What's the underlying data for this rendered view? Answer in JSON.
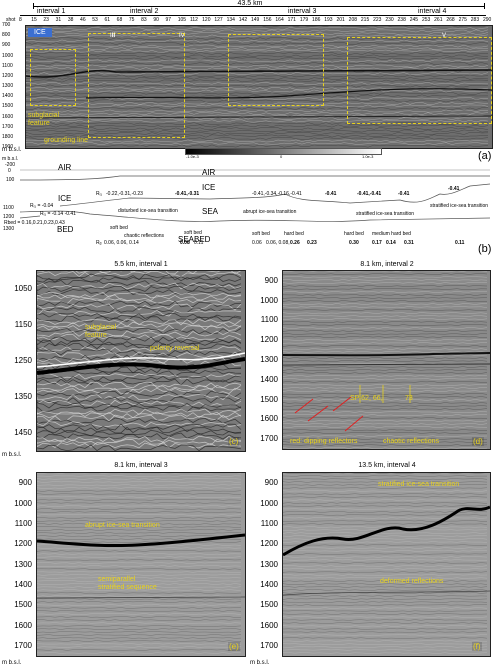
{
  "top": {
    "distance": "43.5 km",
    "intervals": [
      "interval 1",
      "interval 2",
      "interval 3",
      "interval 4"
    ],
    "shot_label": "shot",
    "shots": [
      "8",
      "15",
      "23",
      "31",
      "38",
      "46",
      "53",
      "61",
      "68",
      "75",
      "83",
      "90",
      "97",
      "105",
      "112",
      "120",
      "127",
      "134",
      "142",
      "149",
      "156",
      "164",
      "171",
      "179",
      "186",
      "193",
      "201",
      "208",
      "215",
      "223",
      "230",
      "238",
      "245",
      "253",
      "261",
      "268",
      "275",
      "283",
      "290"
    ],
    "y_ticks": [
      "700",
      "800",
      "900",
      "1000",
      "1100",
      "1200",
      "1300",
      "1400",
      "1500",
      "1600",
      "1700",
      "1800",
      "1900"
    ],
    "ice_badge": "ICE",
    "roman": [
      "II",
      "III",
      "IV",
      "V"
    ],
    "subglacial": "subglacial\nfeature",
    "grounding": "grounding line",
    "colorbar_left": "-1.0e-3",
    "colorbar_mid": "0",
    "colorbar_right": "1.0e-3",
    "unit": "m b.s.l.",
    "panel_a": "(a)"
  },
  "model": {
    "y_unit": "m b.s.l.",
    "y_ticks": [
      "-200",
      "0",
      "100",
      "1100",
      "1200",
      "1300"
    ],
    "air": "AIR",
    "ice": "ICE",
    "sea": "SEA",
    "bed": "BED",
    "seabed": "SEABED",
    "r_air": "Rᵢ₁ = -0.04",
    "r_ice": "Rᵢ₁ = -0.14 -0.41",
    "r_bed": "Rbed = 0.16,0.21,0.23,0.43",
    "ri_values": [
      "-0.22,-0.31,-0.23",
      "-0.41,-0.31",
      "-0.41,-0.34,-0.16,-0.41",
      "-0.41",
      "-0.41,-0.41",
      "-0.41",
      "-0.41"
    ],
    "ri_label": "Rᵢ₁",
    "transitions": [
      "disturbed ice-sea transition",
      "abrupt ice-sea transition",
      "stratified ice-sea transition",
      "stratified ice-sea transition"
    ],
    "beds": [
      "soft bed",
      "chaotic reflections",
      "soft bed",
      "soft bed",
      "hard bed",
      "hard bed",
      "medium hard bed"
    ],
    "rb_label": "Rᵦ",
    "rb_values": [
      "0.06, 0.06, 0.14",
      "0.08",
      "0.11",
      "0.06",
      "0.06, 0.08,",
      "0.26",
      "0.23",
      "0.30",
      "0.17",
      "0.14",
      "0.31",
      "0.11"
    ],
    "panel_b": "(b)"
  },
  "panels": [
    {
      "title": "5.5 km, interval 1",
      "letter": "(c)",
      "y_ticks": [
        "1050",
        "1150",
        "1250",
        "1350",
        "1450"
      ],
      "labels": [
        "subglacial\nfeature",
        "polarity reversal"
      ]
    },
    {
      "title": "8.1 km, interval 2",
      "letter": "(d)",
      "y_ticks": [
        "900",
        "1000",
        "1100",
        "1200",
        "1300",
        "1400",
        "1500",
        "1600",
        "1700"
      ],
      "labels": [
        "SP 62,   66,",
        "73",
        "red: dipping reflectors",
        "chaotic reflections"
      ]
    },
    {
      "title": "8.1 km, interval 3",
      "letter": "(e)",
      "y_ticks": [
        "900",
        "1000",
        "1100",
        "1200",
        "1300",
        "1400",
        "1500",
        "1600",
        "1700"
      ],
      "labels": [
        "abrupt ice-sea transition",
        "semiparallel\nstratified sequence"
      ]
    },
    {
      "title": "13.5 km, interval 4",
      "letter": "(f)",
      "y_ticks": [
        "900",
        "1000",
        "1100",
        "1200",
        "1300",
        "1400",
        "1500",
        "1600",
        "1700"
      ],
      "labels": [
        "stratified ice-sea transition",
        "deformed reflections"
      ]
    }
  ],
  "axis_unit": "m b.s.l."
}
